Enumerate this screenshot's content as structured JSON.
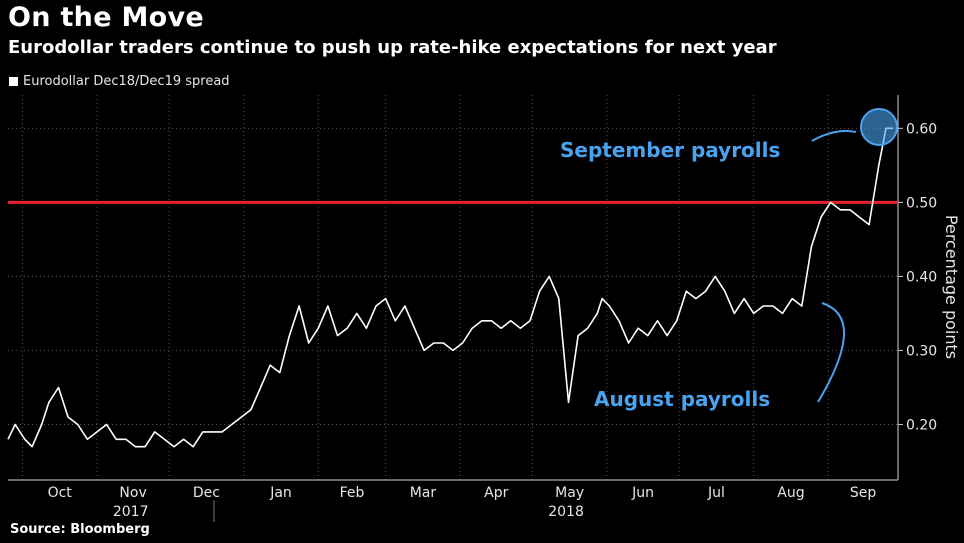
{
  "title": "On the Move",
  "subtitle": "Eurodollar traders continue to push up rate-hike expectations for next year",
  "source": "Source: Bloomberg",
  "colors": {
    "background": "#000000",
    "line": "#ffffff",
    "threshold": "#e8202f",
    "annotation": "#4aa3f0"
  },
  "chart_data": {
    "type": "line",
    "title": "On the Move",
    "subtitle": "Eurodollar traders continue to push up rate-hike expectations for next year",
    "xlabel": "",
    "ylabel": "Percentage points",
    "ylim": [
      0.125,
      0.645
    ],
    "yticks": [
      0.2,
      0.3,
      0.4,
      0.5,
      0.6
    ],
    "ytick_labels": [
      "0.20",
      "0.30",
      "0.40",
      "0.50",
      "0.60"
    ],
    "grid": true,
    "legend_position": "top-left",
    "x_months": [
      "Oct",
      "Nov",
      "Dec",
      "Jan",
      "Feb",
      "Mar",
      "Apr",
      "May",
      "Jun",
      "Jul",
      "Aug",
      "Sep"
    ],
    "x_years": [
      "2017",
      "2018"
    ],
    "x_range": [
      "2017-09-25",
      "2018-09-30"
    ],
    "threshold": 0.5,
    "series": [
      {
        "name": "Eurodollar Dec18/Dec19 spread",
        "x": [
          "2017-09-25",
          "2017-09-28",
          "2017-10-02",
          "2017-10-05",
          "2017-10-09",
          "2017-10-12",
          "2017-10-16",
          "2017-10-20",
          "2017-10-24",
          "2017-10-28",
          "2017-11-01",
          "2017-11-05",
          "2017-11-09",
          "2017-11-13",
          "2017-11-17",
          "2017-11-21",
          "2017-11-25",
          "2017-11-29",
          "2017-12-03",
          "2017-12-07",
          "2017-12-11",
          "2017-12-15",
          "2017-12-19",
          "2017-12-23",
          "2017-12-27",
          "2017-12-31",
          "2018-01-04",
          "2018-01-08",
          "2018-01-12",
          "2018-01-16",
          "2018-01-20",
          "2018-01-24",
          "2018-01-28",
          "2018-02-01",
          "2018-02-05",
          "2018-02-09",
          "2018-02-13",
          "2018-02-17",
          "2018-02-21",
          "2018-02-25",
          "2018-03-01",
          "2018-03-05",
          "2018-03-09",
          "2018-03-13",
          "2018-03-17",
          "2018-03-21",
          "2018-03-25",
          "2018-03-29",
          "2018-04-02",
          "2018-04-06",
          "2018-04-10",
          "2018-04-14",
          "2018-04-18",
          "2018-04-22",
          "2018-04-26",
          "2018-04-30",
          "2018-05-04",
          "2018-05-08",
          "2018-05-12",
          "2018-05-16",
          "2018-05-20",
          "2018-05-24",
          "2018-05-28",
          "2018-05-30",
          "2018-06-02",
          "2018-06-06",
          "2018-06-10",
          "2018-06-14",
          "2018-06-18",
          "2018-06-22",
          "2018-06-26",
          "2018-06-30",
          "2018-07-04",
          "2018-07-08",
          "2018-07-12",
          "2018-07-16",
          "2018-07-20",
          "2018-07-24",
          "2018-07-28",
          "2018-08-01",
          "2018-08-05",
          "2018-08-09",
          "2018-08-13",
          "2018-08-17",
          "2018-08-21",
          "2018-08-25",
          "2018-08-29",
          "2018-09-02",
          "2018-09-06",
          "2018-09-10",
          "2018-09-14",
          "2018-09-18",
          "2018-09-22",
          "2018-09-25",
          "2018-09-28"
        ],
        "values": [
          0.18,
          0.2,
          0.18,
          0.17,
          0.2,
          0.23,
          0.25,
          0.21,
          0.2,
          0.18,
          0.19,
          0.2,
          0.18,
          0.18,
          0.17,
          0.17,
          0.19,
          0.18,
          0.17,
          0.18,
          0.17,
          0.19,
          0.19,
          0.19,
          0.2,
          0.21,
          0.22,
          0.25,
          0.28,
          0.27,
          0.32,
          0.36,
          0.31,
          0.33,
          0.36,
          0.32,
          0.33,
          0.35,
          0.33,
          0.36,
          0.37,
          0.34,
          0.36,
          0.33,
          0.3,
          0.31,
          0.31,
          0.3,
          0.31,
          0.33,
          0.34,
          0.34,
          0.33,
          0.34,
          0.33,
          0.34,
          0.38,
          0.4,
          0.37,
          0.23,
          0.32,
          0.33,
          0.35,
          0.37,
          0.36,
          0.34,
          0.31,
          0.33,
          0.32,
          0.34,
          0.32,
          0.34,
          0.38,
          0.37,
          0.38,
          0.4,
          0.38,
          0.35,
          0.37,
          0.35,
          0.36,
          0.36,
          0.35,
          0.37,
          0.36,
          0.44,
          0.48,
          0.5,
          0.49,
          0.49,
          0.48,
          0.47,
          0.55,
          0.6,
          0.6
        ]
      }
    ],
    "annotations": [
      "September payrolls",
      "August payrolls"
    ]
  }
}
